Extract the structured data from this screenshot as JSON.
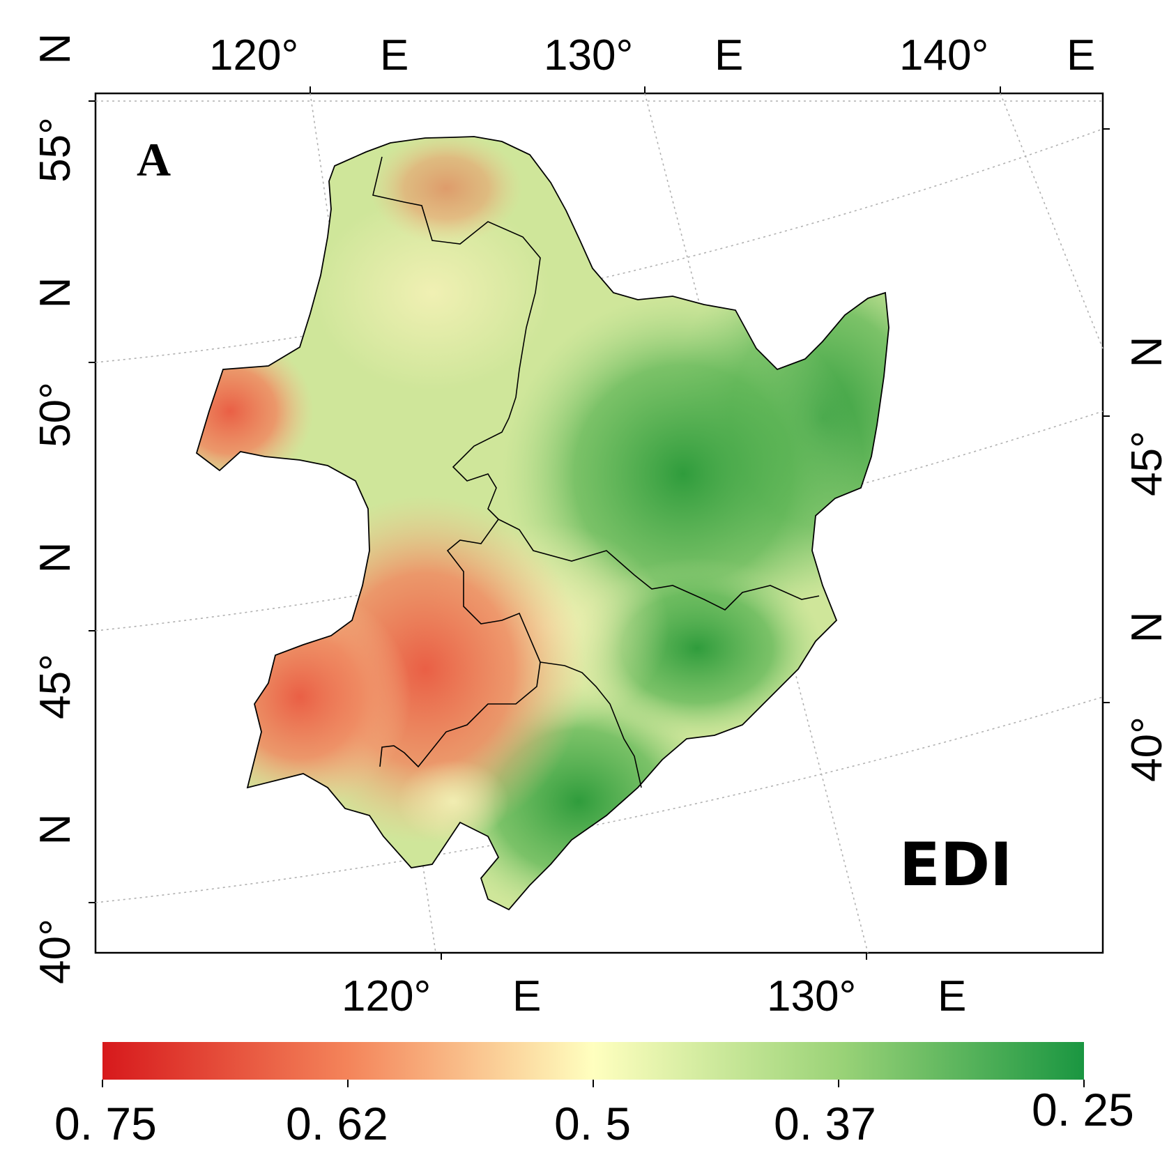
{
  "panel_label": "A",
  "index_name": "EDI",
  "axes": {
    "top_lon": [
      {
        "deg": "120°",
        "hemi": "E"
      },
      {
        "deg": "130°",
        "hemi": "E"
      },
      {
        "deg": "140°",
        "hemi": "E"
      }
    ],
    "bottom_lon": [
      {
        "deg": "120°",
        "hemi": "E"
      },
      {
        "deg": "130°",
        "hemi": "E"
      }
    ],
    "left_lat": [
      {
        "deg": "55°",
        "hemi": "N"
      },
      {
        "deg": "50°",
        "hemi": "N"
      },
      {
        "deg": "45°",
        "hemi": "N"
      },
      {
        "deg": "40°",
        "hemi": "N"
      }
    ],
    "right_lat": [
      {
        "deg": "45°",
        "hemi": "N"
      },
      {
        "deg": "40°",
        "hemi": "N"
      }
    ]
  },
  "legend": {
    "ticks": [
      "0. 75",
      "0. 62",
      "0. 5",
      "0. 37",
      "0. 25"
    ],
    "colors": [
      "#d7191c",
      "#f4845a",
      "#ffffbf",
      "#9bd378",
      "#1a9641"
    ]
  },
  "colors": {
    "high": "#e8684a",
    "mid": "#f2f2b0",
    "low": "#2e9e3e",
    "border": "#000000",
    "graticule": "#b0b0b0"
  }
}
